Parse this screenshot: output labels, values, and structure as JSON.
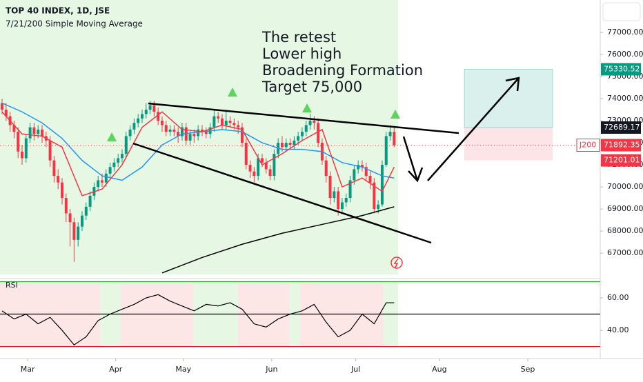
{
  "chart_data": {
    "type": "candlestick",
    "title": "TOP 40 INDEX, 1D, JSE",
    "subtitle": "7/21/200 Simple Moving Average",
    "annotation": [
      "The retest",
      "Lower high",
      "Broadening Formation",
      "Target 75,000"
    ],
    "up_color": "#089981",
    "down_color": "#f23645",
    "xlim": [
      -0.52,
      149.5
    ],
    "xticks": [
      {
        "value": 6.4,
        "label": "Mar"
      },
      {
        "value": 28.4,
        "label": "Apr"
      },
      {
        "value": 45.3,
        "label": "May"
      },
      {
        "value": 67.4,
        "label": "Jun"
      },
      {
        "value": 88.4,
        "label": "Jul"
      },
      {
        "value": 109.3,
        "label": "Aug"
      },
      {
        "value": 131.4,
        "label": "Sep"
      }
    ],
    "ylim": [
      65970,
      78470
    ],
    "yticks": [
      {
        "value": 67000,
        "label": "67000.00"
      },
      {
        "value": 68000,
        "label": "68000.00"
      },
      {
        "value": 69000,
        "label": "69000.00"
      },
      {
        "value": 70000,
        "label": "70000.00"
      },
      {
        "value": 71000,
        "label": "71000.00"
      },
      {
        "value": 72000,
        "label": "72000.00"
      },
      {
        "value": 73000,
        "label": "73000.00"
      },
      {
        "value": 74000,
        "label": "74000.00"
      },
      {
        "value": 75000,
        "label": "75000.00"
      },
      {
        "value": 76000,
        "label": "76000.00"
      },
      {
        "value": 77000,
        "label": "77000.00"
      }
    ],
    "ohlc": [
      [
        73800,
        74000,
        73300,
        73500
      ],
      [
        73500,
        73800,
        73000,
        73200
      ],
      [
        73200,
        73400,
        72500,
        72800
      ],
      [
        72800,
        73000,
        72200,
        72500
      ],
      [
        72500,
        72700,
        71300,
        71600
      ],
      [
        71600,
        71900,
        71000,
        71300
      ],
      [
        71300,
        72400,
        71100,
        72200
      ],
      [
        72200,
        72900,
        72000,
        72700
      ],
      [
        72700,
        72900,
        72100,
        72400
      ],
      [
        72400,
        72800,
        72200,
        72600
      ],
      [
        72600,
        72800,
        72000,
        72300
      ],
      [
        72300,
        72500,
        71800,
        72100
      ],
      [
        72100,
        72300,
        70900,
        71200
      ],
      [
        71200,
        71400,
        70200,
        70500
      ],
      [
        70500,
        70800,
        69900,
        70200
      ],
      [
        70200,
        70400,
        69200,
        69500
      ],
      [
        69500,
        69700,
        68400,
        68800
      ],
      [
        68800,
        69000,
        67300,
        68400
      ],
      [
        68400,
        68600,
        66600,
        67600
      ],
      [
        67600,
        68400,
        67300,
        68200
      ],
      [
        68200,
        68900,
        68000,
        68700
      ],
      [
        68700,
        69300,
        68500,
        69100
      ],
      [
        69100,
        69800,
        68900,
        69600
      ],
      [
        69600,
        70200,
        69400,
        70000
      ],
      [
        70000,
        70500,
        69800,
        70300
      ],
      [
        70300,
        70600,
        70000,
        70200
      ],
      [
        70200,
        70800,
        70000,
        70600
      ],
      [
        70600,
        71100,
        70400,
        70900
      ],
      [
        70900,
        71300,
        70700,
        71100
      ],
      [
        71100,
        71500,
        70900,
        71300
      ],
      [
        71300,
        71700,
        71100,
        71500
      ],
      [
        71500,
        72500,
        71300,
        72300
      ],
      [
        72300,
        72800,
        72100,
        72600
      ],
      [
        72600,
        73100,
        72400,
        72900
      ],
      [
        72900,
        73300,
        72700,
        73100
      ],
      [
        73100,
        73500,
        72900,
        73300
      ],
      [
        73300,
        73800,
        73100,
        73500
      ],
      [
        73500,
        73900,
        73300,
        73700
      ],
      [
        73700,
        73900,
        73200,
        73400
      ],
      [
        73400,
        73600,
        72800,
        73000
      ],
      [
        73000,
        73200,
        72500,
        72800
      ],
      [
        72800,
        73000,
        72300,
        72500
      ],
      [
        72500,
        72800,
        72300,
        72600
      ],
      [
        72600,
        72800,
        72300,
        72500
      ],
      [
        72500,
        72700,
        72000,
        72300
      ],
      [
        72300,
        72900,
        72100,
        72700
      ],
      [
        72700,
        72900,
        71900,
        72100
      ],
      [
        72100,
        72600,
        71900,
        72400
      ],
      [
        72400,
        72600,
        72000,
        72300
      ],
      [
        72300,
        72800,
        72100,
        72600
      ],
      [
        72600,
        72800,
        72300,
        72500
      ],
      [
        72500,
        72700,
        72200,
        72400
      ],
      [
        72400,
        72900,
        72200,
        72700
      ],
      [
        72700,
        73500,
        72500,
        73200
      ],
      [
        73200,
        73400,
        72900,
        73100
      ],
      [
        73100,
        73300,
        72600,
        72800
      ],
      [
        72800,
        73500,
        72600,
        73000
      ],
      [
        73000,
        73200,
        72700,
        72900
      ],
      [
        72900,
        73100,
        72600,
        72800
      ],
      [
        72800,
        73000,
        72400,
        72700
      ],
      [
        72700,
        72900,
        71800,
        72000
      ],
      [
        72000,
        72200,
        70800,
        71000
      ],
      [
        71000,
        71200,
        70400,
        70700
      ],
      [
        70700,
        70900,
        70200,
        70500
      ],
      [
        70500,
        71500,
        70300,
        71300
      ],
      [
        71300,
        71500,
        70900,
        71100
      ],
      [
        71100,
        71300,
        70600,
        70800
      ],
      [
        70800,
        71000,
        70300,
        70500
      ],
      [
        70500,
        71700,
        70300,
        71500
      ],
      [
        71500,
        72200,
        71300,
        72000
      ],
      [
        72000,
        72300,
        71600,
        71800
      ],
      [
        71800,
        72200,
        71600,
        72000
      ],
      [
        72000,
        72200,
        71700,
        71900
      ],
      [
        71900,
        72300,
        71700,
        72100
      ],
      [
        72100,
        72500,
        71900,
        72300
      ],
      [
        72300,
        72700,
        72100,
        72500
      ],
      [
        72500,
        73000,
        72300,
        72800
      ],
      [
        72800,
        73300,
        72600,
        73000
      ],
      [
        73000,
        73200,
        72600,
        72900
      ],
      [
        72900,
        73100,
        71800,
        72000
      ],
      [
        72000,
        72200,
        71000,
        71200
      ],
      [
        71200,
        71400,
        70200,
        70500
      ],
      [
        70500,
        70700,
        69200,
        69500
      ],
      [
        69500,
        70000,
        69300,
        69800
      ],
      [
        69800,
        70000,
        68700,
        69000
      ],
      [
        69000,
        69500,
        68800,
        69300
      ],
      [
        69300,
        69700,
        69100,
        69500
      ],
      [
        69500,
        70500,
        69300,
        70300
      ],
      [
        70300,
        71000,
        70100,
        70800
      ],
      [
        70800,
        71200,
        70600,
        71000
      ],
      [
        71000,
        71200,
        70700,
        70900
      ],
      [
        70900,
        71100,
        70300,
        70500
      ],
      [
        70500,
        70700,
        69900,
        70200
      ],
      [
        70200,
        70400,
        68800,
        69000
      ],
      [
        69000,
        69400,
        68800,
        69200
      ],
      [
        69200,
        71200,
        69100,
        71000
      ],
      [
        71000,
        72500,
        70900,
        72300
      ],
      [
        72300,
        72800,
        72100,
        72500
      ],
      [
        72500,
        72700,
        71800,
        71890
      ]
    ],
    "lines": [
      {
        "color": "#2196f3",
        "x": [
          0,
          5,
          10,
          15,
          20,
          25,
          30,
          35,
          40,
          45,
          50,
          55,
          60,
          65,
          70,
          75,
          80,
          85,
          90,
          95,
          98
        ],
        "values": [
          73800,
          73400,
          72900,
          72200,
          71200,
          70500,
          70300,
          70900,
          71900,
          72400,
          72500,
          72600,
          72500,
          72000,
          71700,
          71700,
          71600,
          71100,
          70900,
          70500,
          70400
        ]
      },
      {
        "color": "#f23645",
        "x": [
          0,
          5,
          10,
          15,
          20,
          25,
          30,
          35,
          40,
          45,
          50,
          55,
          60,
          65,
          70,
          75,
          80,
          85,
          90,
          95,
          98
        ],
        "values": [
          73400,
          72400,
          72300,
          71800,
          69600,
          69900,
          71000,
          72700,
          73400,
          72600,
          72500,
          72800,
          72600,
          71000,
          71500,
          72100,
          72600,
          70000,
          70400,
          69800,
          70900
        ]
      },
      {
        "color": "#000000",
        "x": [
          40,
          50,
          60,
          70,
          80,
          90,
          98
        ],
        "values": [
          66100,
          66800,
          67400,
          67900,
          68300,
          68700,
          69100
        ]
      }
    ],
    "price_labels": [
      {
        "value": 75330.52,
        "color": "#089981"
      },
      {
        "value": 72689.17,
        "color": "#131722"
      },
      {
        "value": 71892.35,
        "color": "#f23645",
        "symbol": "J200"
      },
      {
        "value": 71201.01,
        "color": "#f23645"
      }
    ],
    "rsi": {
      "label": "RSI",
      "color": "#000000",
      "ylim": [
        26,
        70.2
      ],
      "yticks": [
        {
          "value": 60,
          "label": "60.00"
        },
        {
          "value": 40,
          "label": "40.00"
        }
      ],
      "levels": [
        {
          "value": 70,
          "color": "#22ab22"
        },
        {
          "value": 50,
          "color": "#000000"
        },
        {
          "value": 30,
          "color": "#e02020"
        }
      ],
      "x": [
        0,
        3,
        6,
        9,
        12,
        15,
        18,
        21,
        24,
        27,
        30,
        33,
        36,
        39,
        42,
        45,
        48,
        51,
        54,
        57,
        60,
        63,
        66,
        69,
        72,
        75,
        78,
        81,
        84,
        87,
        90,
        93,
        96,
        98
      ],
      "values": [
        52,
        47,
        50,
        44,
        48,
        40,
        31,
        36,
        46,
        50,
        53,
        56,
        60,
        62,
        58,
        55,
        52,
        56,
        55,
        57,
        53,
        44,
        42,
        47,
        50,
        52,
        56,
        45,
        36,
        40,
        50,
        44,
        57,
        57
      ]
    }
  }
}
